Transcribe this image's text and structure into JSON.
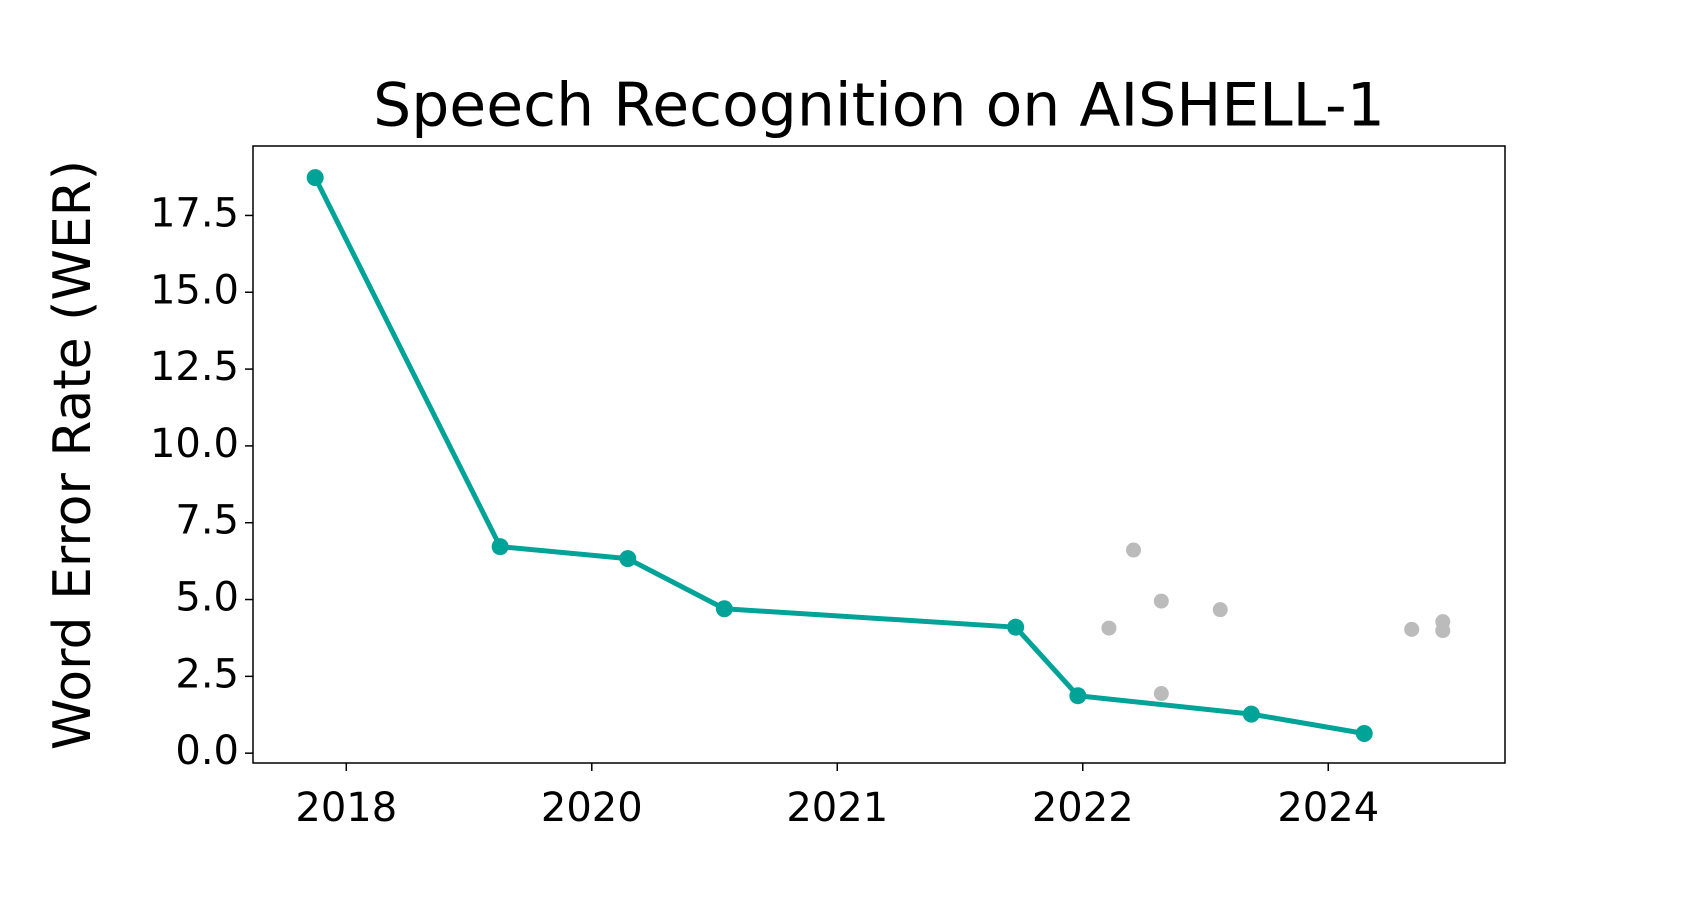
{
  "chart_data": {
    "type": "line",
    "title": "Speech Recognition on AISHELL-1",
    "y_label": "Word Error Rate (WER)",
    "xlim": [
      2017.43,
      2025.08
    ],
    "xticks": [
      2018,
      {
        "value": 2019.5,
        "label": "2020"
      },
      2021,
      {
        "value": 2022.5,
        "label": "2022"
      },
      2024
    ],
    "ylim": [
      -0.32,
      19.76
    ],
    "yticks": [
      {
        "value": 0,
        "label": "0.0"
      },
      2.5,
      {
        "value": 5,
        "label": "5.0"
      },
      7.5,
      {
        "value": 10,
        "label": "10.0"
      },
      12.5,
      {
        "value": 15,
        "label": "15.0"
      },
      17.5
    ],
    "grid": false,
    "series": [
      {
        "style": "line",
        "color": "#00a398",
        "x": [
          2017.81,
          2018.94,
          2019.72,
          2020.31,
          2022.09,
          2022.47,
          2023.53,
          2024.22
        ],
        "values": [
          18.73,
          6.72,
          6.33,
          4.7,
          4.1,
          1.87,
          1.27,
          0.64
        ]
      },
      {
        "style": "scatter",
        "color": "#bbbbbb",
        "x": [
          2022.66,
          2022.81,
          2022.98,
          2022.98,
          2023.34,
          2024.51,
          2024.7,
          2024.7
        ],
        "values": [
          4.07,
          6.61,
          4.95,
          1.94,
          4.67,
          4.03,
          4.28,
          3.99
        ]
      }
    ]
  }
}
